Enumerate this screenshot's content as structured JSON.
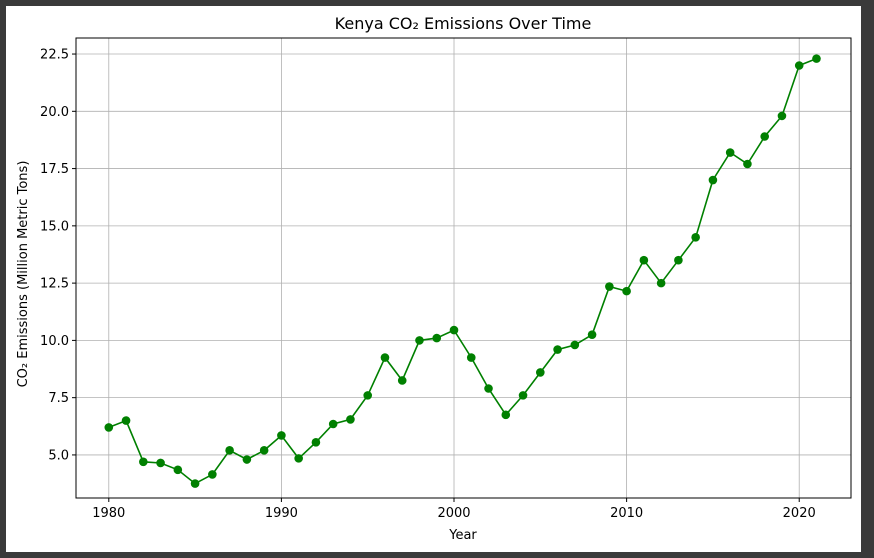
{
  "chart_data": {
    "type": "line",
    "title": "Kenya CO₂ Emissions Over Time",
    "xlabel": "Year",
    "ylabel": "CO₂ Emissions (Million Metric Tons)",
    "xlim": [
      1978.1,
      2023.0
    ],
    "ylim": [
      3.12,
      23.2
    ],
    "x_ticks": [
      1980,
      1990,
      2000,
      2010,
      2020
    ],
    "y_ticks": [
      5.0,
      7.5,
      10.0,
      12.5,
      15.0,
      17.5,
      20.0,
      22.5
    ],
    "grid": true,
    "color": "#008000",
    "series": [
      {
        "x": [
          1980,
          1981,
          1982,
          1983,
          1984,
          1985,
          1986,
          1987,
          1988,
          1989,
          1990,
          1991,
          1992,
          1993,
          1994,
          1995,
          1996,
          1997,
          1998,
          1999,
          2000,
          2001,
          2002,
          2003,
          2004,
          2005,
          2006,
          2007,
          2008,
          2009,
          2010,
          2011,
          2012,
          2013,
          2014,
          2015,
          2016,
          2017,
          2018,
          2019,
          2020,
          2021
        ],
        "values": [
          6.2,
          6.5,
          4.7,
          4.65,
          4.35,
          3.75,
          4.15,
          5.2,
          4.8,
          5.2,
          5.85,
          4.85,
          5.55,
          6.35,
          6.55,
          7.6,
          9.25,
          8.25,
          10.0,
          10.1,
          10.45,
          9.25,
          7.9,
          6.75,
          7.6,
          8.6,
          9.6,
          9.8,
          10.25,
          12.35,
          12.15,
          13.5,
          12.5,
          13.5,
          14.5,
          17.0,
          18.2,
          17.7,
          18.9,
          19.8,
          22.0,
          22.3
        ]
      }
    ]
  }
}
